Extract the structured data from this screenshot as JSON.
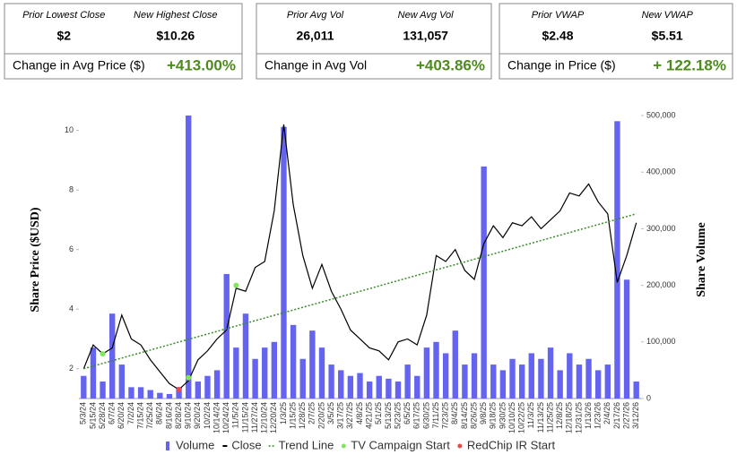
{
  "summary": [
    {
      "left_label": "Prior Lowest Close",
      "left_value": "$2",
      "right_label": "New Highest Close",
      "right_value": "$10.26",
      "change_label": "Change in Avg Price ($)",
      "change_value": "+413.00%"
    },
    {
      "left_label": "Prior Avg Vol",
      "left_value": "26,011",
      "right_label": "New Avg Vol",
      "right_value": "131,057",
      "change_label": "Change in Avg Vol",
      "change_value": "+403.86%"
    },
    {
      "left_label": "Prior VWAP",
      "left_value": "$2.48",
      "right_label": "New VWAP",
      "right_value": "$5.51",
      "change_label": "Change in Price ($)",
      "change_value": "+ 122.18%"
    }
  ],
  "chart_data": {
    "type": "combo",
    "y_label": "Share Price ($USD)",
    "y2_label": "Share Volume",
    "categories": [
      "5/3/24",
      "5/15/24",
      "5/28/24",
      "6/7/24",
      "6/20/24",
      "7/2/24",
      "7/15/24",
      "7/25/24",
      "8/6/24",
      "8/16/24",
      "8/28/24",
      "9/10/24",
      "9/20/24",
      "10/2/24",
      "10/14/24",
      "10/24/24",
      "11/5/24",
      "11/15/24",
      "11/27/24",
      "12/10/24",
      "12/20/24",
      "1/3/25",
      "1/15/25",
      "1/28/25",
      "2/7/25",
      "2/20/25",
      "3/5/25",
      "3/17/25",
      "3/27/25",
      "4/8/25",
      "4/21/25",
      "5/1/25",
      "5/13/25",
      "5/23/25",
      "6/5/25",
      "6/17/25",
      "6/30/25",
      "7/11/25",
      "7/23/25",
      "8/4/25",
      "8/14/25",
      "8/26/25",
      "9/8/25",
      "9/18/25",
      "9/30/25",
      "10/10/25",
      "10/22/25",
      "11/3/25",
      "11/13/25",
      "11/25/25",
      "12/8/25",
      "12/18/25",
      "12/31/25",
      "1/13/26",
      "1/23/26",
      "2/4/26",
      "2/17/26",
      "2/27/26",
      "3/12/26"
    ],
    "series": [
      {
        "name": "Volume",
        "color": "#6464f0",
        "type": "bar",
        "axis": "y2",
        "values": [
          40000,
          90000,
          30000,
          150000,
          60000,
          20000,
          20000,
          15000,
          10000,
          8000,
          20000,
          500000,
          30000,
          40000,
          50000,
          220000,
          90000,
          150000,
          70000,
          90000,
          100000,
          480000,
          130000,
          70000,
          120000,
          90000,
          60000,
          50000,
          40000,
          45000,
          30000,
          40000,
          35000,
          30000,
          60000,
          40000,
          90000,
          100000,
          80000,
          120000,
          60000,
          80000,
          410000,
          60000,
          50000,
          70000,
          60000,
          80000,
          70000,
          90000,
          50000,
          80000,
          60000,
          70000,
          50000,
          60000,
          490000,
          210000,
          30000
        ]
      },
      {
        "name": "Close",
        "color": "#000000",
        "type": "line",
        "values": [
          2.0,
          2.8,
          2.5,
          2.7,
          3.8,
          3.0,
          2.8,
          2.3,
          1.9,
          1.5,
          1.3,
          1.6,
          2.3,
          2.6,
          3.0,
          3.3,
          4.7,
          4.6,
          5.4,
          5.6,
          7.3,
          10.2,
          7.5,
          5.8,
          4.7,
          5.5,
          4.6,
          4.0,
          3.3,
          3.0,
          2.7,
          2.6,
          2.3,
          2.9,
          3.0,
          2.8,
          3.8,
          5.8,
          5.6,
          6.0,
          5.3,
          5.0,
          6.2,
          6.8,
          6.4,
          6.9,
          6.8,
          7.1,
          6.7,
          7.0,
          7.3,
          7.9,
          7.8,
          8.2,
          7.6,
          7.2,
          4.9,
          5.8,
          6.9
        ]
      }
    ],
    "trend": {
      "name": "Trend Line",
      "color": "#3a8a2a",
      "start": 2.0,
      "end": 7.2
    },
    "markers": [
      {
        "name": "TV Campaign Start",
        "color": "#7ee85a",
        "x": [
          "5/28/24",
          "9/10/24",
          "11/5/24"
        ],
        "values": [
          2.5,
          1.7,
          4.8
        ]
      },
      {
        "name": "RedChip IR Start",
        "color": "#e84a4a",
        "x": [
          "8/28/24"
        ],
        "values": [
          1.3
        ]
      }
    ],
    "ylim": [
      1,
      10.5
    ],
    "yticks": [
      2,
      4,
      6,
      8,
      10
    ],
    "y2lim": [
      0,
      500000
    ],
    "y2ticks": [
      0,
      {
        "value": 100000,
        "label": "100,000"
      },
      {
        "value": 200000,
        "label": "200,000"
      },
      {
        "value": 300000,
        "label": "300,000"
      },
      {
        "value": 400000,
        "label": "400,000"
      },
      {
        "value": 500000,
        "label": "500,000"
      }
    ]
  }
}
